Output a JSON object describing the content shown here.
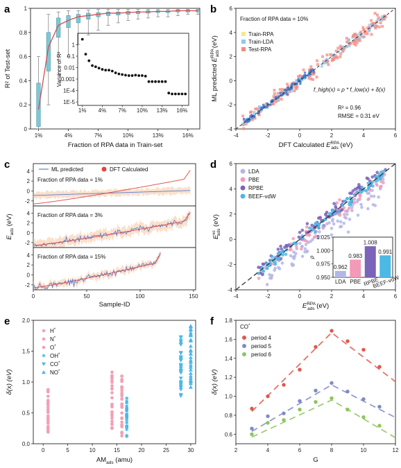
{
  "panels": {
    "a": {
      "letter": "a"
    },
    "b": {
      "letter": "b"
    },
    "c": {
      "letter": "c"
    },
    "d": {
      "letter": "d"
    },
    "e": {
      "letter": "e"
    },
    "f": {
      "letter": "f"
    }
  },
  "chart_data": [
    {
      "id": "a",
      "type": "box",
      "xlabel": "Fraction of RPA data in Train-set",
      "ylabel": "R² of Test-set",
      "ylim": [
        0,
        1
      ],
      "yticks": [
        "0",
        "0.2",
        "0.4",
        "0.6",
        "0.8",
        "1"
      ],
      "xticks": [
        "1%",
        "4%",
        "7%",
        "10%",
        "13%",
        "16%"
      ],
      "x_frac": [
        1,
        2,
        3,
        4,
        5,
        6,
        7,
        8,
        9,
        10,
        11,
        12,
        13,
        14,
        15,
        16,
        17
      ],
      "median": [
        0.16,
        0.68,
        0.86,
        0.9,
        0.93,
        0.94,
        0.95,
        0.96,
        0.96,
        0.965,
        0.97,
        0.97,
        0.975,
        0.975,
        0.98,
        0.98,
        0.98
      ],
      "q1": [
        0.02,
        0.48,
        0.76,
        0.84,
        0.88,
        0.91,
        0.93,
        0.94,
        0.945,
        0.95,
        0.955,
        0.96,
        0.965,
        0.965,
        0.97,
        0.97,
        0.97
      ],
      "q3": [
        0.38,
        0.8,
        0.92,
        0.94,
        0.95,
        0.96,
        0.965,
        0.97,
        0.97,
        0.975,
        0.975,
        0.98,
        0.98,
        0.98,
        0.985,
        0.985,
        0.985
      ],
      "wlo": [
        0.0,
        0.2,
        0.45,
        0.6,
        0.7,
        0.78,
        0.82,
        0.86,
        0.88,
        0.9,
        0.91,
        0.92,
        0.93,
        0.93,
        0.94,
        0.95,
        0.95
      ],
      "whi": [
        0.6,
        0.95,
        0.97,
        0.98,
        0.98,
        0.985,
        0.99,
        0.99,
        0.99,
        0.99,
        0.99,
        0.99,
        0.99,
        0.99,
        0.99,
        0.99,
        0.99
      ],
      "colors": {
        "box": "#7ec8d6",
        "line": "#d84b4b"
      },
      "inset": {
        "ylabel": "Variance of R²",
        "yticks": [
          "1E-5",
          "1E-4",
          "0.001",
          "0.01",
          "0.1",
          "1"
        ],
        "xticks": [
          "1%",
          "4%",
          "7%",
          "10%",
          "13%",
          "16%"
        ],
        "x": [
          1,
          1.5,
          2,
          2.5,
          3,
          3.5,
          4,
          4.5,
          5,
          5.5,
          6,
          6.5,
          7,
          7.5,
          8,
          8.5,
          9,
          9.5,
          10,
          10.5,
          11,
          11.5,
          12,
          12.5,
          13,
          13.5,
          14,
          14.5,
          15,
          15.5,
          16,
          16.5
        ],
        "y": [
          3,
          0.15,
          0.04,
          0.015,
          0.012,
          0.009,
          0.007,
          0.006,
          0.006,
          0.005,
          0.0035,
          0.0028,
          0.0025,
          0.0022,
          0.002,
          0.002,
          0.0022,
          0.002,
          0.002,
          0.0018,
          0.0006,
          0.0006,
          0.0006,
          0.0006,
          0.0006,
          0.0006,
          6e-05,
          5e-05,
          5e-05,
          5e-05,
          5e-05,
          5e-05
        ]
      }
    },
    {
      "id": "b",
      "type": "scatter",
      "annotation": "Fraction of RPA data = 10%",
      "xlabel_main": "DFT Calculated ",
      "xlabel_sym": "E",
      "xlabel_sup": "RPA",
      "xlabel_sub": "ads",
      "xlabel_unit": " (eV)",
      "ylabel_main": "ML predicted ",
      "ylabel_sym": "E",
      "ylabel_sup": "RPA",
      "ylabel_sub": "ads",
      "ylabel_unit": " (eV)",
      "xlim": [
        -4,
        6
      ],
      "ylim": [
        -4,
        6
      ],
      "ticks": [
        "-4",
        "-2",
        "0",
        "2",
        "4",
        "6"
      ],
      "legend": [
        "Train-RPA",
        "Train-LDA",
        "Test-RPA"
      ],
      "colors": [
        "#f7e98a",
        "#8ec9ee",
        "#f28b82"
      ],
      "formula": "f_high(x) = ρ * f_low(x) + δ(x)",
      "r2": "R² = 0.96",
      "rmse": "RMSE = 0.31 eV"
    },
    {
      "id": "c",
      "type": "line",
      "legend": [
        "ML predicted",
        "DFT Calculated"
      ],
      "subtitles": [
        "Fraction of RPA data = 1%",
        "Fraction of RPA data = 3%",
        "Fraction of RPA data = 15%"
      ],
      "xlabel": "Sample-ID",
      "ylabel_sym": "E",
      "ylabel_sub": "ads",
      "ylabel_unit": " (eV)",
      "xticks": [
        "0",
        "50",
        "100",
        "150"
      ],
      "yticks": [
        "-2",
        "0",
        "2",
        "4"
      ],
      "colors": {
        "ml": "#5b7fd6",
        "dft": "#e14545",
        "band": "#f6c6a0"
      }
    },
    {
      "id": "d",
      "type": "scatter",
      "legend": [
        "LDA",
        "PBE",
        "RPBE",
        "BEEF-vdW"
      ],
      "colors": [
        "#b3b7e6",
        "#f29ab8",
        "#7a63b8",
        "#4cb8e6"
      ],
      "xlabel_sym": "E",
      "xlabel_sup": "RPA",
      "xlabel_sub": "ads",
      "xlabel_unit": " (eV)",
      "ylabel_sym": "E",
      "ylabel_sup": "xc",
      "ylabel_sub": "ads",
      "ylabel_unit": " (eV)",
      "xlim": [
        -4,
        6
      ],
      "ylim": [
        -4,
        6
      ],
      "xticks": [
        "-4",
        "-2",
        "0",
        "2",
        "4",
        "6"
      ],
      "yticks": [
        "-4",
        "-2",
        "0",
        "2",
        "4",
        "6"
      ],
      "inset": {
        "ylabel": "ρ",
        "categories": [
          "LDA",
          "PBE",
          "RPBE",
          "BEEF-vdW"
        ],
        "values": [
          0.962,
          0.983,
          1.008,
          0.991
        ],
        "value_labels": [
          "0.962",
          "0.983",
          "1.008",
          "0.991"
        ],
        "yticks": [
          "0.950",
          "0.975",
          "1.000",
          "1.025"
        ],
        "ylim": [
          0.95,
          1.025
        ]
      }
    },
    {
      "id": "e",
      "type": "scatter",
      "legend": [
        "H*",
        "N*",
        "O*",
        "OH*",
        "CO*",
        "NO*"
      ],
      "legend_base": [
        "H",
        "N",
        "O",
        "OH",
        "CO",
        "NO"
      ],
      "colors": [
        "#f2a0b5",
        "#f2a0b5",
        "#f2a0b5",
        "#4cb8e6",
        "#4cb8e6",
        "#4cb8e6"
      ],
      "xlabel_main": "AM",
      "xlabel_sub": "ads",
      "xlabel_unit": " (amu)",
      "ylabel": "δ(x) (eV)",
      "xlim": [
        -2,
        31
      ],
      "ylim": [
        0,
        2
      ],
      "xticks": [
        "0",
        "5",
        "10",
        "15",
        "20",
        "25",
        "30"
      ],
      "yticks": [
        "0.0",
        "0.5",
        "1.0",
        "1.5",
        "2.0"
      ]
    },
    {
      "id": "f",
      "type": "scatter",
      "title": "CO*",
      "title_base": "CO",
      "legend": [
        "period 4",
        "period 5",
        "period 6"
      ],
      "colors": [
        "#e0584f",
        "#8089c8",
        "#8cc65a"
      ],
      "xlabel": "G",
      "ylabel": "δ(x) (eV)",
      "xlim": [
        2,
        12
      ],
      "ylim": [
        0.5,
        1.8
      ],
      "xticks": [
        "2",
        "4",
        "6",
        "8",
        "10",
        "12"
      ],
      "yticks": [
        "0.6",
        "0.8",
        "1.0",
        "1.2",
        "1.4",
        "1.6",
        "1.8"
      ],
      "series": [
        {
          "name": "period 4",
          "x": [
            3,
            4,
            5,
            6,
            7,
            8,
            9,
            10,
            11
          ],
          "y": [
            0.87,
            1.0,
            1.12,
            1.28,
            1.52,
            1.69,
            1.58,
            1.49,
            1.31
          ]
        },
        {
          "name": "period 5",
          "x": [
            3,
            4,
            5,
            6,
            7,
            8,
            9,
            10,
            11
          ],
          "y": [
            0.66,
            0.79,
            0.82,
            0.95,
            1.06,
            1.14,
            1.05,
            0.97,
            0.89
          ]
        },
        {
          "name": "period 6",
          "x": [
            3,
            4,
            5,
            6,
            7,
            8,
            9,
            10,
            11
          ],
          "y": [
            0.6,
            0.72,
            0.75,
            0.86,
            0.94,
            0.98,
            0.86,
            0.78,
            0.69
          ]
        }
      ]
    }
  ]
}
